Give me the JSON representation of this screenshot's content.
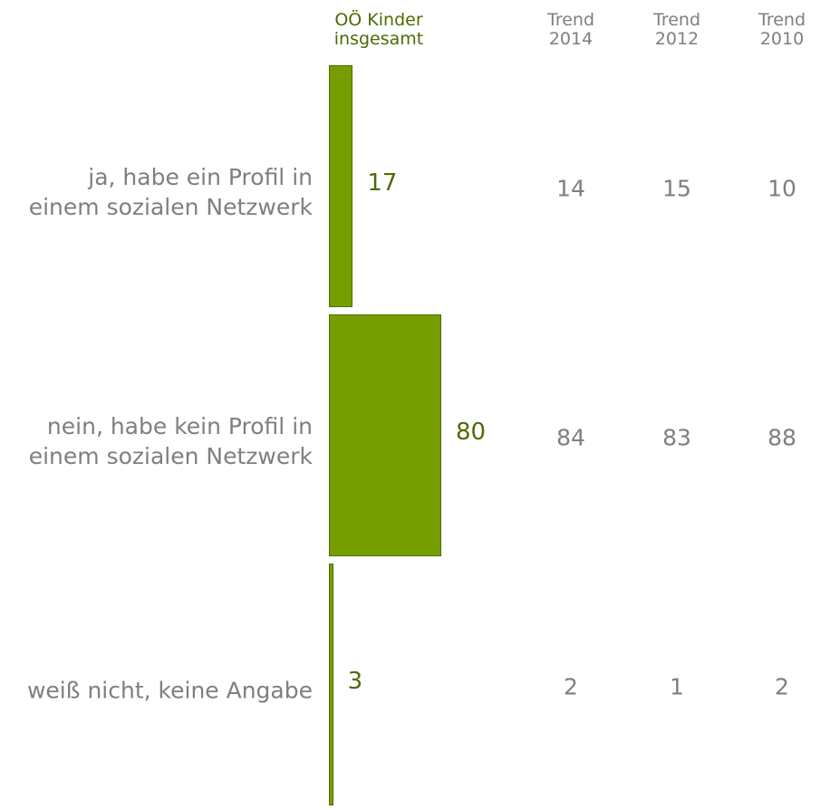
{
  "chart_data": {
    "type": "bar",
    "orientation": "horizontal",
    "categories": [
      "ja, habe ein Profil in\neinem sozialen Netzwerk",
      "nein, habe kein Profil in\neinem sozialen Netzwerk",
      "weiß nicht, keine Angabe"
    ],
    "series": [
      {
        "name": "OÖ Kinder\ninsgesamt",
        "color": "#779e00",
        "values": [
          17,
          80,
          3
        ]
      }
    ],
    "trends": [
      {
        "name": "Trend\n2014",
        "values": [
          14,
          84,
          2
        ]
      },
      {
        "name": "Trend\n2012",
        "values": [
          15,
          83,
          1
        ]
      },
      {
        "name": "Trend\n2010",
        "values": [
          10,
          88,
          2
        ]
      }
    ]
  }
}
